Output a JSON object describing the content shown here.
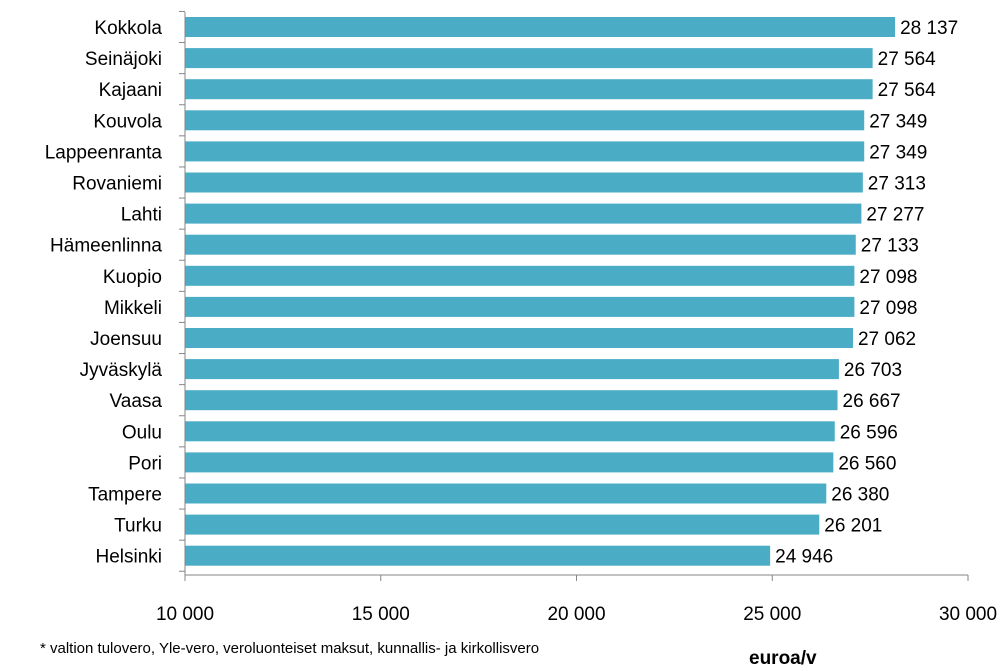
{
  "chart_data": {
    "type": "bar",
    "orientation": "horizontal",
    "categories": [
      "Kokkola",
      "Seinäjoki",
      "Kajaani",
      "Kouvola",
      "Lappeenranta",
      "Rovaniemi",
      "Lahti",
      "Hämeenlinna",
      "Kuopio",
      "Mikkeli",
      "Joensuu",
      "Jyväskylä",
      "Vaasa",
      "Oulu",
      "Pori",
      "Tampere",
      "Turku",
      "Helsinki"
    ],
    "values": [
      28137,
      27564,
      27564,
      27349,
      27349,
      27313,
      27277,
      27133,
      27098,
      27098,
      27062,
      26703,
      26667,
      26596,
      26560,
      26380,
      26201,
      24946
    ],
    "value_labels": [
      "28 137",
      "27 564",
      "27 564",
      "27 349",
      "27 349",
      "27 313",
      "27 277",
      "27 133",
      "27 098",
      "27 098",
      "27 062",
      "26 703",
      "26 667",
      "26 596",
      "26 560",
      "26 380",
      "26 201",
      "24 946"
    ],
    "xlim": [
      10000,
      30000
    ],
    "xticks": [
      10000,
      15000,
      20000,
      25000,
      30000
    ],
    "xtick_labels": [
      "10 000",
      "15 000",
      "20 000",
      "25 000",
      "30 000"
    ],
    "xlabel": "euroa/v",
    "footnote": "* valtion tulovero, Yle-vero, veroluonteiset maksut, kunnallis- ja kirkollisvero",
    "bar_color": "#4bacc6",
    "grid": false
  }
}
